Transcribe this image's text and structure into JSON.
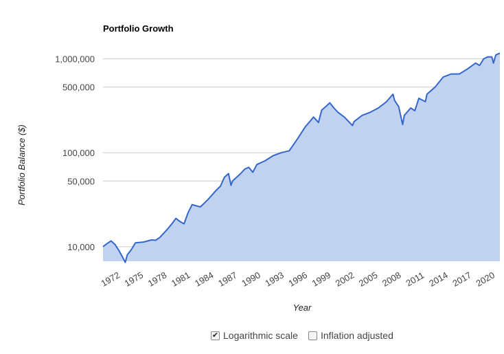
{
  "title": "Portfolio Growth",
  "controls": {
    "log_scale": {
      "label": "Logarithmic scale",
      "checked": true
    },
    "inflation": {
      "label": "Inflation adjusted",
      "checked": false
    }
  },
  "colors": {
    "line": "#3366cc",
    "fill": "#c1d2f0",
    "grid": "#cccccc"
  },
  "chart_data": {
    "type": "area",
    "title": "Portfolio Growth",
    "xlabel": "Year",
    "ylabel": "Portfolio Balance ($)",
    "y_scale": "log",
    "ylim": [
      7000,
      1300000
    ],
    "xlim": [
      1972,
      2021
    ],
    "y_ticks": [
      {
        "value": 10000,
        "label": "10,000"
      },
      {
        "value": 50000,
        "label": "50,000"
      },
      {
        "value": 100000,
        "label": "100,000"
      },
      {
        "value": 500000,
        "label": "500,000"
      },
      {
        "value": 1000000,
        "label": "1,000,000"
      }
    ],
    "x_ticks": [
      "1972",
      "1975",
      "1978",
      "1981",
      "1984",
      "1987",
      "1990",
      "1993",
      "1996",
      "1999",
      "2002",
      "2005",
      "2008",
      "2011",
      "2014",
      "2017",
      "2020"
    ],
    "grid": true,
    "legend": "none",
    "series": [
      {
        "x": [
          1972,
          1972.5,
          1973,
          1973.5,
          1974,
          1974.5,
          1974.75,
          1975,
          1975.5,
          1976,
          1977,
          1978,
          1978.5,
          1979,
          1980,
          1980.5,
          1981,
          1981.5,
          1982,
          1982.5,
          1983,
          1984,
          1984.5,
          1985,
          1986,
          1986.5,
          1987,
          1987.5,
          1987.8,
          1988,
          1989,
          1989.5,
          1990,
          1990.5,
          1991,
          1992,
          1993,
          1994,
          1995,
          1996,
          1997,
          1998,
          1998.6,
          1999,
          1999.5,
          2000,
          2000.5,
          2001,
          2001.8,
          2002,
          2002.8,
          2003,
          2004,
          2005,
          2006,
          2007,
          2007.8,
          2008,
          2008.5,
          2009,
          2009.2,
          2010,
          2010.5,
          2011,
          2011.8,
          2012,
          2013,
          2014,
          2015,
          2016,
          2017,
          2018,
          2018.5,
          2019,
          2019.5,
          2020,
          2020.2,
          2020.5,
          2021
        ],
        "values": [
          10000,
          10800,
          11500,
          10500,
          9000,
          7500,
          6800,
          8200,
          9300,
          11000,
          11200,
          11800,
          11700,
          12500,
          15500,
          17500,
          20000,
          18500,
          17500,
          23000,
          28000,
          26500,
          29000,
          32000,
          40000,
          44000,
          55000,
          60000,
          45000,
          50000,
          60000,
          67000,
          70000,
          62000,
          75000,
          82000,
          93000,
          100000,
          105000,
          140000,
          190000,
          240000,
          210000,
          285000,
          310000,
          340000,
          300000,
          270000,
          240000,
          230000,
          195000,
          215000,
          250000,
          270000,
          300000,
          350000,
          420000,
          360000,
          310000,
          200000,
          250000,
          300000,
          280000,
          380000,
          350000,
          420000,
          500000,
          640000,
          690000,
          690000,
          780000,
          900000,
          850000,
          1000000,
          1050000,
          1050000,
          900000,
          1100000,
          1150000
        ]
      }
    ]
  }
}
